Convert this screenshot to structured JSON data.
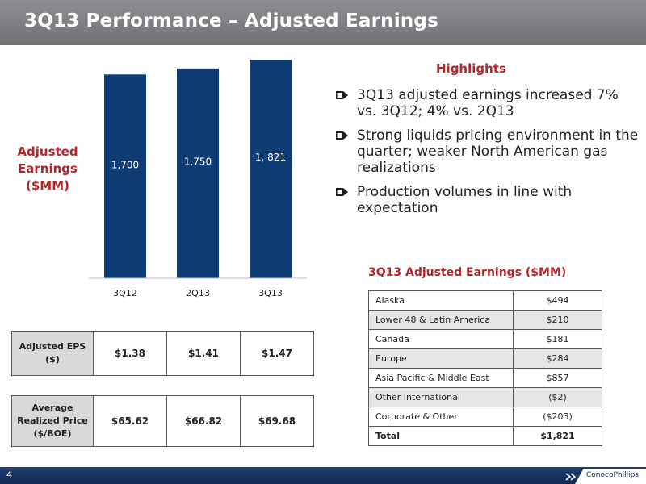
{
  "header": {
    "title": "3Q13 Performance – Adjusted Earnings"
  },
  "chart_data": {
    "type": "bar",
    "ylabel": "Adjusted Earnings ($MM)",
    "categories": [
      "3Q12",
      "2Q13",
      "3Q13"
    ],
    "values": [
      1700,
      1750,
      1821
    ],
    "value_labels": [
      "1,700",
      "1,750",
      "1, 821"
    ],
    "ylim": [
      0,
      1850
    ],
    "grid": false,
    "bar_color": "#0e3d75",
    "label_color": "#ffffff"
  },
  "eps_table": {
    "label": "Adjusted EPS ($)",
    "values": [
      "$1.38",
      "$1.41",
      "$1.47"
    ]
  },
  "price_table": {
    "label": "Average Realized Price ($/BOE)",
    "values": [
      "$65.62",
      "$66.82",
      "$69.68"
    ]
  },
  "highlights": {
    "title": "Highlights",
    "items": [
      "3Q13 adjusted earnings increased 7% vs. 3Q12; 4% vs. 2Q13",
      "Strong liquids pricing environment in the quarter; weaker North American gas realizations",
      "Production volumes in line with expectation"
    ],
    "bullet_icon": "arrow-bullet-icon"
  },
  "segment_table": {
    "title": "3Q13 Adjusted Earnings ($MM)",
    "rows": [
      {
        "segment": "Alaska",
        "value": "$494"
      },
      {
        "segment": "Lower 48 & Latin America",
        "value": "$210"
      },
      {
        "segment": "Canada",
        "value": "$181"
      },
      {
        "segment": "Europe",
        "value": "$284"
      },
      {
        "segment": "Asia Pacific & Middle East",
        "value": "$857"
      },
      {
        "segment": "Other International",
        "value": "($2)"
      },
      {
        "segment": "Corporate & Other",
        "value": "($203)"
      }
    ],
    "total": {
      "segment": "Total",
      "value": "$1,821"
    }
  },
  "footer": {
    "page_number": "4",
    "logo_text": "ConocoPhillips"
  },
  "colors": {
    "accent": "#b2262a",
    "navy": "#0e3d75",
    "title_bar": "#7b7d80"
  }
}
